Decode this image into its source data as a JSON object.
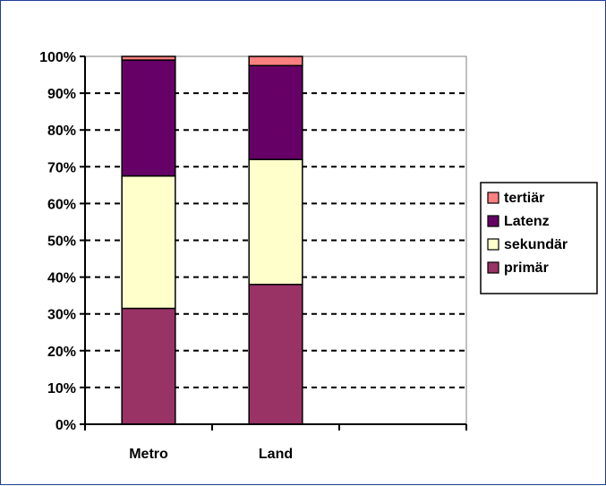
{
  "chart_data": {
    "type": "bar",
    "stacked": true,
    "percent_stacked": true,
    "categories": [
      "Metro",
      "Land",
      ""
    ],
    "series": [
      {
        "name": "primär",
        "values": [
          31.5,
          38.0,
          null
        ],
        "color": "#993366"
      },
      {
        "name": "sekundär",
        "values": [
          36.0,
          34.0,
          null
        ],
        "color": "#ffffcc"
      },
      {
        "name": "Latenz",
        "values": [
          31.5,
          25.5,
          null
        ],
        "color": "#660066"
      },
      {
        "name": "tertiär",
        "values": [
          1.0,
          2.5,
          null
        ],
        "color": "#ff8080"
      }
    ],
    "y_ticks": [
      "0%",
      "10%",
      "20%",
      "30%",
      "40%",
      "50%",
      "60%",
      "70%",
      "80%",
      "90%",
      "100%"
    ],
    "ylim": [
      0,
      100
    ],
    "grid": "horizontal-dashed",
    "legend_position": "right",
    "legend_order": [
      "tertiär",
      "Latenz",
      "sekundär",
      "primär"
    ],
    "title": "",
    "xlabel": "",
    "ylabel": ""
  }
}
